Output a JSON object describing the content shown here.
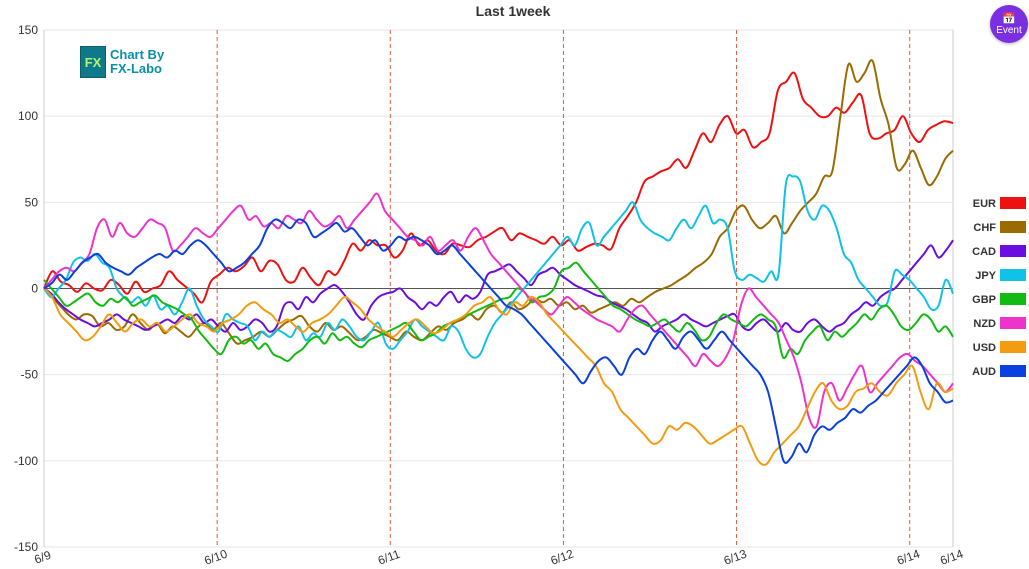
{
  "ui": {
    "logo_mark": "FX",
    "logo_line1": "Chart By",
    "logo_line2": "FX-Labo",
    "event_label": "Event",
    "event_icon": "calendar-icon"
  },
  "chart_data": {
    "type": "line",
    "title": "Last 1week",
    "ylim": [
      -150,
      150
    ],
    "yticks": [
      150,
      100,
      50,
      0,
      -50,
      -100,
      -150
    ],
    "x_range": [
      0,
      126
    ],
    "date_ticks": [
      {
        "label": "6/9",
        "x": 0
      },
      {
        "label": "6/10",
        "x": 24
      },
      {
        "label": "6/11",
        "x": 48
      },
      {
        "label": "6/12",
        "x": 72
      },
      {
        "label": "6/13",
        "x": 96
      },
      {
        "label": "6/14",
        "x": 120
      },
      {
        "label": "6/14",
        "x": 126
      }
    ],
    "grid": true,
    "legend_position": "right",
    "series": [
      {
        "name": "EUR",
        "color": "#ee1111",
        "values": [
          0,
          10,
          4,
          2,
          -2,
          3,
          0,
          -1,
          5,
          2,
          -3,
          4,
          -2,
          0,
          2,
          10,
          5,
          1,
          -3,
          -8,
          4,
          8,
          12,
          10,
          13,
          18,
          10,
          16,
          14,
          5,
          4,
          12,
          6,
          2,
          10,
          8,
          16,
          26,
          22,
          28,
          25,
          25,
          18,
          22,
          32,
          25,
          28,
          22,
          20,
          26,
          25,
          24,
          28,
          30,
          33,
          35,
          28,
          32,
          30,
          28,
          26,
          30,
          25,
          28,
          22,
          24,
          26,
          25,
          23,
          35,
          42,
          50,
          62,
          65,
          68,
          70,
          75,
          70,
          80,
          90,
          85,
          95,
          100,
          90,
          92,
          82,
          85,
          90,
          115,
          120,
          125,
          110,
          105,
          100,
          100,
          105,
          102,
          108,
          112,
          90,
          87,
          90,
          92,
          100,
          90,
          85,
          92,
          95,
          97,
          96
        ]
      },
      {
        "name": "CHF",
        "color": "#9a6b00",
        "values": [
          0,
          -5,
          -10,
          -15,
          -18,
          -15,
          -16,
          -22,
          -20,
          -24,
          -22,
          -15,
          -20,
          -24,
          -20,
          -26,
          -22,
          -25,
          -28,
          -23,
          -20,
          -24,
          -20,
          -26,
          -32,
          -30,
          -28,
          -25,
          -28,
          -24,
          -20,
          -18,
          -16,
          -22,
          -25,
          -20,
          -24,
          -22,
          -26,
          -30,
          -28,
          -24,
          -26,
          -28,
          -30,
          -25,
          -28,
          -30,
          -26,
          -22,
          -24,
          -20,
          -18,
          -15,
          -18,
          -12,
          -10,
          -14,
          -8,
          -12,
          -10,
          -6,
          -8,
          -6,
          -10,
          -8,
          -12,
          -10,
          -14,
          -12,
          -10,
          -8,
          -10,
          -6,
          -8,
          -5,
          -2,
          0,
          2,
          5,
          8,
          12,
          15,
          20,
          30,
          35,
          45,
          48,
          40,
          35,
          38,
          42,
          32,
          38,
          45,
          50,
          55,
          65,
          68,
          100,
          130,
          120,
          125,
          132,
          110,
          95,
          70,
          72,
          80,
          70,
          60,
          65,
          75,
          80
        ]
      },
      {
        "name": "CAD",
        "color": "#6b0de0",
        "values": [
          0,
          -3,
          -8,
          -12,
          -15,
          -18,
          -20,
          -22,
          -20,
          -18,
          -15,
          -18,
          -20,
          -22,
          -24,
          -22,
          -20,
          -18,
          -20,
          -16,
          -18,
          -15,
          -20,
          -18,
          -22,
          -25,
          -20,
          -24,
          -22,
          -18,
          -20,
          -25,
          -22,
          -10,
          -8,
          -12,
          -5,
          -8,
          -3,
          0,
          2,
          -2,
          -8,
          -15,
          -18,
          -10,
          -5,
          -3,
          -2,
          0,
          -5,
          -8,
          -12,
          -8,
          -10,
          -5,
          -2,
          -8,
          -4,
          -6,
          -2,
          8,
          10,
          12,
          14,
          10,
          6,
          2,
          8,
          10,
          12,
          8,
          5,
          2,
          0,
          -2,
          -4,
          -5,
          -8,
          -10,
          -12,
          -15,
          -18,
          -20,
          -25,
          -22,
          -20,
          -18,
          -15,
          -18,
          -20,
          -22,
          -20,
          -18,
          -16,
          -15,
          -22,
          -24,
          -20,
          -18,
          -22,
          -25,
          -20,
          -24,
          -25,
          -20,
          -18,
          -22,
          -25,
          -22,
          -20,
          -15,
          -12,
          -8,
          -10,
          -5,
          -2,
          0,
          5,
          10,
          15,
          20,
          25,
          18,
          22,
          28
        ]
      },
      {
        "name": "JPY",
        "color": "#11c2e8",
        "values": [
          0,
          -5,
          0,
          5,
          15,
          18,
          16,
          20,
          15,
          12,
          0,
          -5,
          -8,
          -5,
          -10,
          -4,
          -12,
          -10,
          -15,
          -8,
          0,
          -10,
          -18,
          -22,
          -25,
          -15,
          -18,
          -20,
          -22,
          -30,
          -25,
          -28,
          -24,
          -26,
          -28,
          -22,
          -30,
          -26,
          -28,
          -20,
          -24,
          -18,
          -22,
          -28,
          -30,
          -25,
          -20,
          -32,
          -35,
          -30,
          -25,
          -18,
          -22,
          -25,
          -28,
          -30,
          -22,
          -25,
          -35,
          -40,
          -38,
          -28,
          -20,
          -15,
          -10,
          -5,
          0,
          5,
          10,
          15,
          20,
          25,
          30,
          25,
          35,
          38,
          25,
          30,
          35,
          40,
          45,
          50,
          40,
          35,
          32,
          30,
          28,
          35,
          40,
          35,
          42,
          48,
          38,
          40,
          35,
          10,
          5,
          8,
          6,
          4,
          10,
          8,
          60,
          65,
          62,
          45,
          40,
          48,
          45,
          35,
          20,
          15,
          5,
          0,
          -5,
          -10,
          -8,
          10,
          8,
          5,
          0,
          -5,
          -12,
          -10,
          5,
          -3
        ]
      },
      {
        "name": "GBP",
        "color": "#11bb11",
        "values": [
          5,
          0,
          -5,
          -10,
          -8,
          -5,
          -3,
          -8,
          -10,
          -6,
          -8,
          -5,
          -10,
          -8,
          -6,
          -4,
          -8,
          -10,
          -12,
          -15,
          -18,
          -25,
          -30,
          -35,
          -38,
          -30,
          -28,
          -32,
          -30,
          -35,
          -32,
          -38,
          -40,
          -42,
          -38,
          -35,
          -30,
          -28,
          -32,
          -26,
          -30,
          -28,
          -32,
          -34,
          -30,
          -28,
          -26,
          -24,
          -22,
          -20,
          -25,
          -30,
          -28,
          -26,
          -22,
          -20,
          -18,
          -16,
          -14,
          -12,
          -10,
          -8,
          -6,
          -5,
          0,
          -2,
          -8,
          -5,
          -4,
          0,
          10,
          12,
          15,
          10,
          5,
          0,
          -5,
          -10,
          -12,
          -15,
          -18,
          -20,
          -22,
          -20,
          -18,
          -22,
          -25,
          -20,
          -24,
          -30,
          -28,
          -20,
          -15,
          -18,
          -20,
          -22,
          -18,
          -15,
          -18,
          -22,
          -40,
          -35,
          -38,
          -30,
          -25,
          -22,
          -30,
          -25,
          -28,
          -24,
          -20,
          -15,
          -18,
          -12,
          -10,
          -15,
          -22,
          -24,
          -20,
          -15,
          -18,
          -25,
          -22,
          -28
        ]
      },
      {
        "name": "NZD",
        "color": "#ee33cc",
        "values": [
          0,
          5,
          10,
          12,
          10,
          15,
          20,
          35,
          40,
          30,
          38,
          32,
          30,
          35,
          40,
          38,
          35,
          22,
          25,
          30,
          35,
          32,
          30,
          35,
          40,
          45,
          48,
          40,
          42,
          36,
          38,
          35,
          42,
          40,
          38,
          45,
          40,
          36,
          38,
          42,
          35,
          40,
          45,
          50,
          55,
          45,
          40,
          35,
          30,
          28,
          25,
          30,
          22,
          25,
          28,
          22,
          30,
          35,
          28,
          20,
          15,
          10,
          5,
          0,
          -5,
          -8,
          -12,
          -15,
          -10,
          -5,
          -8,
          -12,
          -15,
          -18,
          -20,
          -22,
          -25,
          -18,
          -12,
          -10,
          -15,
          -20,
          -25,
          -30,
          -35,
          -40,
          -45,
          -38,
          -42,
          -45,
          -40,
          -30,
          -10,
          0,
          -5,
          -10,
          -15,
          -20,
          -30,
          -40,
          -55,
          -75,
          -80,
          -60,
          -55,
          -65,
          -58,
          -50,
          -45,
          -60,
          -55,
          -50,
          -45,
          -40,
          -38,
          -42,
          -45,
          -50,
          -55,
          -60,
          -55
        ]
      },
      {
        "name": "USD",
        "color": "#f39c12",
        "values": [
          0,
          -5,
          -15,
          -20,
          -25,
          -30,
          -28,
          -22,
          -15,
          -20,
          -25,
          -20,
          -18,
          -22,
          -20,
          -25,
          -22,
          -18,
          -15,
          -20,
          -22,
          -25,
          -20,
          -18,
          -15,
          -10,
          -8,
          -12,
          -15,
          -20,
          -18,
          -22,
          -25,
          -20,
          -18,
          -15,
          -10,
          -5,
          -8,
          -12,
          -18,
          -22,
          -25,
          -28,
          -24,
          -20,
          -18,
          -22,
          -26,
          -24,
          -20,
          -18,
          -15,
          -10,
          -8,
          -5,
          -12,
          -15,
          -8,
          -10,
          -5,
          -8,
          -15,
          -20,
          -25,
          -30,
          -35,
          -40,
          -45,
          -55,
          -60,
          -70,
          -75,
          -80,
          -85,
          -90,
          -88,
          -80,
          -82,
          -78,
          -80,
          -85,
          -90,
          -88,
          -85,
          -82,
          -80,
          -90,
          -100,
          -102,
          -95,
          -90,
          -85,
          -80,
          -70,
          -60,
          -55,
          -65,
          -70,
          -68,
          -60,
          -58,
          -55,
          -60,
          -62,
          -55,
          -50,
          -45,
          -60,
          -70,
          -55,
          -60,
          -58
        ]
      },
      {
        "name": "AUD",
        "color": "#0a3fe0",
        "values": [
          0,
          3,
          8,
          5,
          10,
          15,
          18,
          20,
          15,
          12,
          10,
          8,
          12,
          15,
          18,
          20,
          18,
          22,
          20,
          25,
          28,
          25,
          20,
          15,
          10,
          12,
          15,
          20,
          25,
          35,
          40,
          38,
          35,
          40,
          38,
          30,
          32,
          35,
          38,
          33,
          35,
          30,
          25,
          28,
          22,
          25,
          30,
          28,
          30,
          28,
          25,
          20,
          22,
          25,
          20,
          15,
          10,
          5,
          0,
          -5,
          -10,
          -12,
          -15,
          -20,
          -25,
          -30,
          -35,
          -40,
          -45,
          -50,
          -55,
          -48,
          -42,
          -40,
          -45,
          -50,
          -40,
          -35,
          -38,
          -30,
          -25,
          -30,
          -35,
          -28,
          -25,
          -30,
          -35,
          -30,
          -25,
          -30,
          -35,
          -40,
          -45,
          -50,
          -60,
          -80,
          -100,
          -98,
          -90,
          -95,
          -85,
          -80,
          -82,
          -78,
          -75,
          -70,
          -72,
          -68,
          -65,
          -60,
          -55,
          -50,
          -45,
          -40,
          -45,
          -55,
          -60,
          -66,
          -65
        ]
      }
    ]
  }
}
